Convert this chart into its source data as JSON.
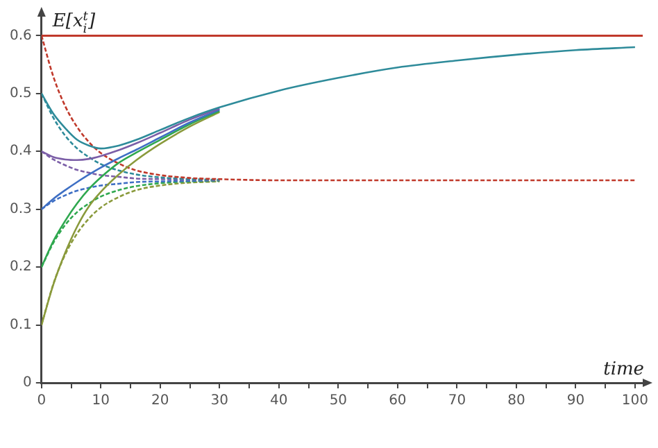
{
  "chart_data": {
    "type": "line",
    "xlabel": "time",
    "ylabel": "E[x$_{i}$$^{t}$]",
    "xlim": [
      0,
      102
    ],
    "ylim": [
      0,
      0.64
    ],
    "xticks": [
      0,
      {
        "value": 5,
        "label": null
      },
      10,
      {
        "value": 15,
        "label": null
      },
      20,
      {
        "value": 25,
        "label": null
      },
      30,
      {
        "value": 35,
        "label": null
      },
      40,
      {
        "value": 45,
        "label": null
      },
      50,
      {
        "value": 55,
        "label": null
      },
      60,
      {
        "value": 65,
        "label": null
      },
      70,
      {
        "value": 75,
        "label": null
      },
      80,
      {
        "value": 85,
        "label": null
      },
      90,
      {
        "value": 95,
        "label": null
      },
      100
    ],
    "yticks": [
      0,
      0.1,
      0.2,
      0.3,
      0.4,
      0.5,
      0.6
    ],
    "grid": false,
    "legend": false,
    "marker": "none",
    "ref_lines": [
      {
        "axis": "y",
        "value": 0.6,
        "color": "#c0392b",
        "line_style": "solid"
      }
    ],
    "series": [
      {
        "color": "#2e8b9a",
        "line_style": "solid",
        "x": [
          0,
          2,
          4,
          6,
          8,
          10,
          13,
          16,
          20,
          25,
          30,
          40,
          50,
          60,
          70,
          80,
          90,
          100
        ],
        "values": [
          0.5,
          0.465,
          0.44,
          0.42,
          0.41,
          0.405,
          0.41,
          0.42,
          0.437,
          0.458,
          0.476,
          0.505,
          0.527,
          0.545,
          0.557,
          0.567,
          0.575,
          0.58
        ]
      },
      {
        "color": "#7b5ea7",
        "line_style": "solid",
        "x": [
          0,
          2,
          4,
          6,
          8,
          10,
          13,
          16,
          20,
          25,
          30
        ],
        "values": [
          0.4,
          0.39,
          0.386,
          0.385,
          0.387,
          0.392,
          0.402,
          0.414,
          0.432,
          0.455,
          0.474
        ]
      },
      {
        "color": "#3e6fc4",
        "line_style": "solid",
        "x": [
          0,
          2,
          4,
          6,
          8,
          10,
          13,
          16,
          20,
          25,
          30
        ],
        "values": [
          0.3,
          0.318,
          0.333,
          0.347,
          0.36,
          0.372,
          0.388,
          0.403,
          0.424,
          0.45,
          0.472
        ]
      },
      {
        "color": "#2fa84f",
        "line_style": "solid",
        "x": [
          0,
          2,
          4,
          6,
          8,
          10,
          13,
          16,
          20,
          25,
          30
        ],
        "values": [
          0.2,
          0.245,
          0.28,
          0.31,
          0.335,
          0.355,
          0.38,
          0.398,
          0.42,
          0.447,
          0.47
        ]
      },
      {
        "color": "#8a9a3c",
        "line_style": "solid",
        "x": [
          0,
          2,
          4,
          6,
          8,
          10,
          13,
          16,
          20,
          25,
          30
        ],
        "values": [
          0.1,
          0.17,
          0.225,
          0.27,
          0.305,
          0.33,
          0.36,
          0.385,
          0.413,
          0.443,
          0.468
        ]
      },
      {
        "color": "#c0392b",
        "line_style": "dashed",
        "x": [
          0,
          2,
          4,
          6,
          8,
          10,
          13,
          16,
          20,
          25,
          30,
          40,
          50,
          60,
          70,
          80,
          90,
          100
        ],
        "values": [
          0.6,
          0.529,
          0.478,
          0.442,
          0.416,
          0.397,
          0.379,
          0.367,
          0.359,
          0.354,
          0.352,
          0.35,
          0.35,
          0.35,
          0.35,
          0.35,
          0.35,
          0.35
        ]
      },
      {
        "color": "#2e8b9a",
        "line_style": "dashed",
        "x": [
          0,
          2,
          4,
          6,
          8,
          10,
          13,
          16,
          20,
          25,
          30
        ],
        "values": [
          0.5,
          0.458,
          0.427,
          0.405,
          0.39,
          0.378,
          0.367,
          0.36,
          0.355,
          0.352,
          0.351
        ]
      },
      {
        "color": "#7b5ea7",
        "line_style": "dashed",
        "x": [
          0,
          2,
          4,
          6,
          8,
          10,
          13,
          16,
          20,
          25,
          30
        ],
        "values": [
          0.4,
          0.386,
          0.376,
          0.368,
          0.363,
          0.359,
          0.356,
          0.353,
          0.352,
          0.351,
          0.35
        ]
      },
      {
        "color": "#3e6fc4",
        "line_style": "dashed",
        "x": [
          0,
          2,
          4,
          6,
          8,
          10,
          13,
          16,
          20,
          25,
          30
        ],
        "values": [
          0.3,
          0.314,
          0.324,
          0.332,
          0.337,
          0.341,
          0.344,
          0.347,
          0.348,
          0.349,
          0.35
        ]
      },
      {
        "color": "#2fa84f",
        "line_style": "dashed",
        "x": [
          0,
          2,
          4,
          6,
          8,
          10,
          13,
          16,
          20,
          25,
          30
        ],
        "values": [
          0.2,
          0.242,
          0.273,
          0.295,
          0.31,
          0.322,
          0.333,
          0.34,
          0.345,
          0.348,
          0.349
        ]
      },
      {
        "color": "#8a9a3c",
        "line_style": "dashed",
        "x": [
          0,
          2,
          4,
          6,
          8,
          10,
          13,
          16,
          20,
          25,
          30
        ],
        "values": [
          0.1,
          0.171,
          0.222,
          0.258,
          0.284,
          0.303,
          0.321,
          0.333,
          0.341,
          0.346,
          0.348
        ]
      }
    ]
  }
}
